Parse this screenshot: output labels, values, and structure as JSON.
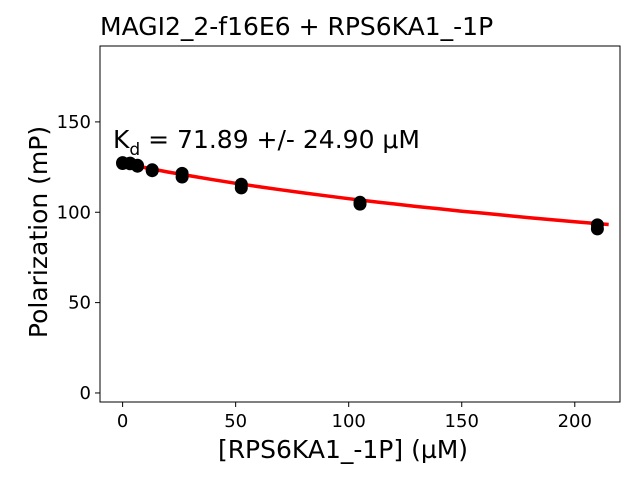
{
  "chart_data": {
    "type": "scatter",
    "title": "MAGI2_2-f16E6 + RPS6KA1_-1P",
    "xlabel": "[RPS6KA1_-1P] (µM)",
    "ylabel": "Polarization (mP)",
    "xlim": [
      -10,
      220
    ],
    "ylim": [
      -5,
      192
    ],
    "xticks": [
      0,
      50,
      100,
      150,
      200
    ],
    "yticks": [
      0,
      50,
      100,
      150
    ],
    "grid": false,
    "annotation": {
      "prefix": "K",
      "subscript": "d",
      "text": " = 71.89 +/- 24.90 μM"
    },
    "points": [
      {
        "x": 0,
        "y": 127.5
      },
      {
        "x": 0,
        "y": 127.0
      },
      {
        "x": 3.3,
        "y": 127.2
      },
      {
        "x": 3.3,
        "y": 126.8
      },
      {
        "x": 6.6,
        "y": 126.0
      },
      {
        "x": 6.6,
        "y": 125.5
      },
      {
        "x": 13.1,
        "y": 123.5
      },
      {
        "x": 13.1,
        "y": 123.0
      },
      {
        "x": 26.3,
        "y": 121.5
      },
      {
        "x": 26.3,
        "y": 119.5
      },
      {
        "x": 52.5,
        "y": 115.5
      },
      {
        "x": 52.5,
        "y": 113.5
      },
      {
        "x": 105,
        "y": 105.5
      },
      {
        "x": 105,
        "y": 104.5
      },
      {
        "x": 210,
        "y": 93.0
      },
      {
        "x": 210,
        "y": 90.8
      }
    ],
    "fit": {
      "color": "#ff0000",
      "x": [
        0,
        10,
        20,
        30,
        40,
        50,
        60,
        70,
        80,
        90,
        100,
        110,
        120,
        130,
        140,
        150,
        160,
        170,
        180,
        190,
        200,
        210,
        215
      ],
      "y": [
        127.3,
        124.7,
        122.3,
        120.1,
        118.0,
        116.0,
        114.2,
        112.4,
        110.7,
        109.1,
        107.5,
        106.0,
        104.6,
        103.2,
        101.9,
        100.6,
        99.4,
        98.2,
        97.0,
        95.9,
        94.8,
        93.7,
        93.2
      ]
    }
  }
}
